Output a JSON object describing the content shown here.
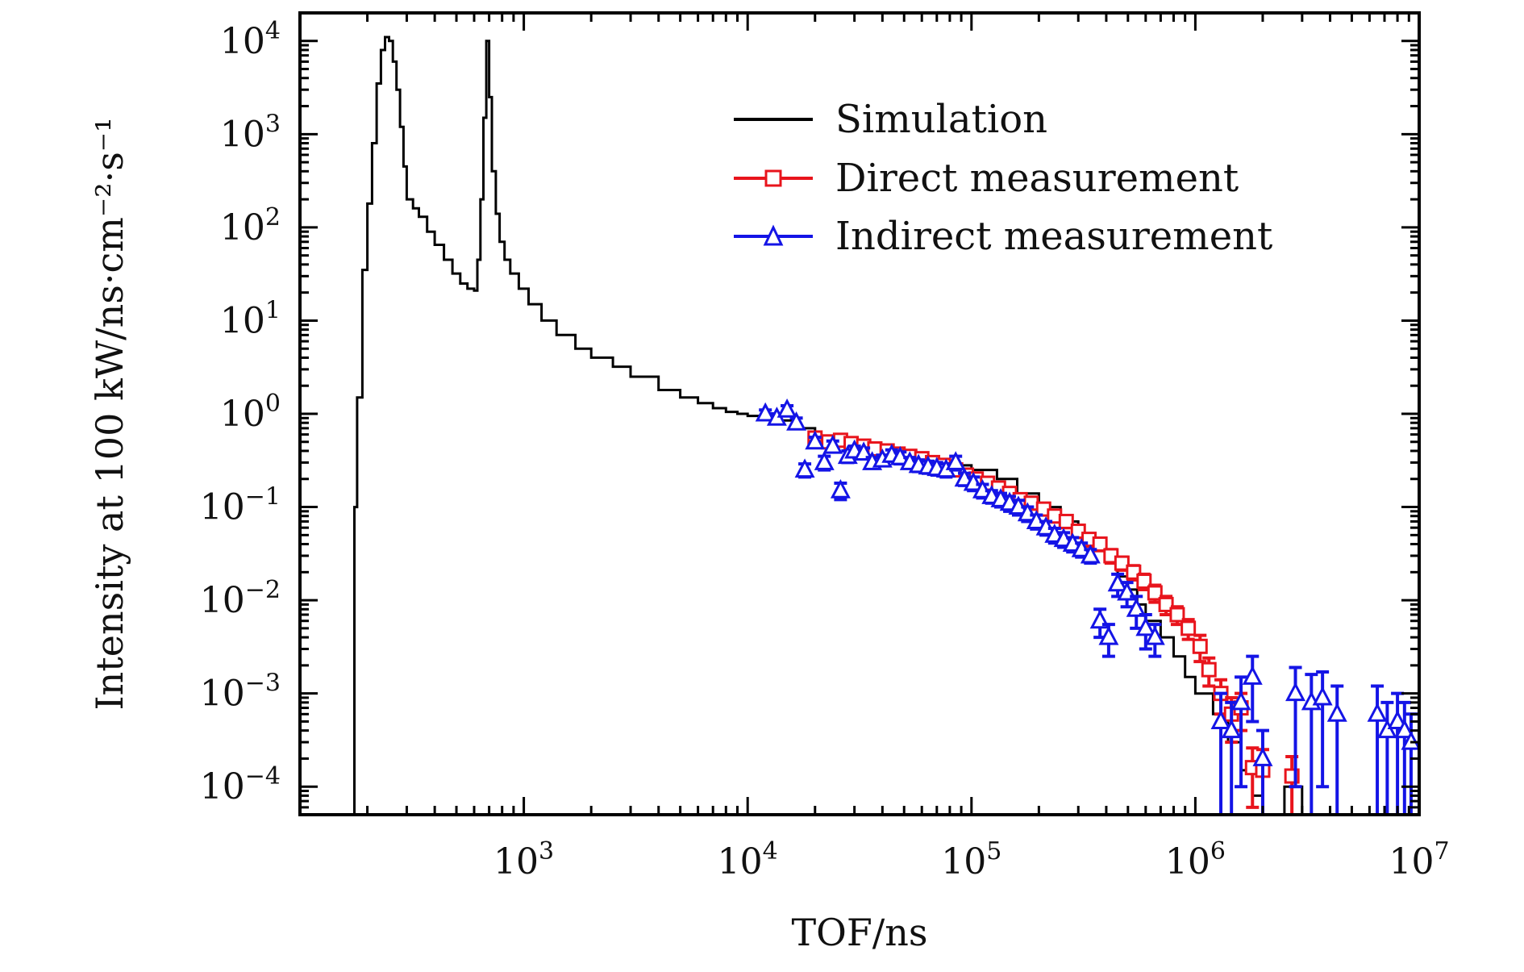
{
  "chart_data": {
    "type": "line",
    "title": "",
    "xlabel": "TOF/ns",
    "ylabel": "Intensity at 100 kW/ns·cm⁻²·s⁻¹",
    "xscale": "log",
    "yscale": "log",
    "xlim": [
      100,
      10000000
    ],
    "ylim": [
      5e-05,
      20000
    ],
    "grid": false,
    "legend_position": "top-right",
    "x_ticks": [
      {
        "value": 1000,
        "base": "10",
        "exp": "3"
      },
      {
        "value": 10000,
        "base": "10",
        "exp": "4"
      },
      {
        "value": 100000,
        "base": "10",
        "exp": "5"
      },
      {
        "value": 1000000,
        "base": "10",
        "exp": "6"
      },
      {
        "value": 10000000,
        "base": "10",
        "exp": "7"
      }
    ],
    "y_ticks": [
      {
        "value": 10000,
        "base": "10",
        "exp": "4"
      },
      {
        "value": 1000,
        "base": "10",
        "exp": "3"
      },
      {
        "value": 100,
        "base": "10",
        "exp": "2"
      },
      {
        "value": 10,
        "base": "10",
        "exp": "1"
      },
      {
        "value": 1,
        "base": "10",
        "exp": "0"
      },
      {
        "value": 0.1,
        "base": "10",
        "exp": "−1"
      },
      {
        "value": 0.01,
        "base": "10",
        "exp": "−2"
      },
      {
        "value": 0.001,
        "base": "10",
        "exp": "−3"
      },
      {
        "value": 0.0001,
        "base": "10",
        "exp": "−4"
      }
    ],
    "series": [
      {
        "name": "Simulation",
        "color": "#000000",
        "marker": "none",
        "style": "step",
        "x": [
          170,
          175,
          180,
          190,
          200,
          210,
          220,
          230,
          240,
          250,
          260,
          270,
          280,
          290,
          300,
          320,
          340,
          370,
          400,
          440,
          480,
          520,
          560,
          600,
          620,
          640,
          660,
          680,
          700,
          720,
          750,
          780,
          820,
          870,
          950,
          1050,
          1200,
          1400,
          1700,
          2000,
          2500,
          3000,
          4000,
          5000,
          6000,
          7000,
          8000,
          9000,
          10000,
          13000,
          16000,
          20000,
          25000,
          30000,
          40000,
          50000,
          60000,
          70000,
          80000,
          100000,
          130000,
          160000,
          200000,
          250000,
          300000,
          350000,
          400000,
          450000,
          500000,
          550000,
          600000,
          700000,
          800000,
          900000,
          1000000,
          1200000,
          1400000,
          1600000,
          1800000,
          2000000,
          2500000,
          3000000
        ],
        "y": [
          5e-05,
          0.1,
          1.5,
          35,
          180,
          800,
          3500,
          8000,
          11000,
          10000,
          6000,
          3000,
          1200,
          450,
          200,
          160,
          130,
          90,
          65,
          45,
          32,
          25,
          22,
          21,
          45,
          200,
          1500,
          10000,
          2500,
          400,
          140,
          70,
          45,
          32,
          22,
          15,
          10,
          7,
          5,
          4,
          3.2,
          2.5,
          1.8,
          1.5,
          1.3,
          1.15,
          1.05,
          1.0,
          0.95,
          0.85,
          0.7,
          0.55,
          0.45,
          0.42,
          0.38,
          0.35,
          0.32,
          0.3,
          0.28,
          0.25,
          0.2,
          0.14,
          0.1,
          0.07,
          0.05,
          0.035,
          0.025,
          0.018,
          0.013,
          0.009,
          0.006,
          0.004,
          0.0025,
          0.0015,
          0.001,
          0.0006,
          0.0003,
          0.00015,
          8e-05,
          5e-05,
          0.0001,
          5e-05
        ]
      },
      {
        "name": "Direct measurement",
        "color": "#e8141c",
        "marker": "square",
        "x": [
          20000,
          23000,
          26000,
          29000,
          33000,
          37000,
          42000,
          47000,
          53000,
          60000,
          67000,
          75000,
          85000,
          95000,
          105000,
          118000,
          132000,
          148000,
          165000,
          185000,
          210000,
          235000,
          265000,
          300000,
          335000,
          375000,
          420000,
          470000,
          530000,
          590000,
          660000,
          740000,
          830000,
          930000,
          1050000,
          1150000,
          1300000,
          1450000,
          1600000,
          1800000,
          2000000,
          2700000
        ],
        "y": [
          0.55,
          0.5,
          0.52,
          0.48,
          0.45,
          0.42,
          0.4,
          0.37,
          0.35,
          0.33,
          0.3,
          0.28,
          0.25,
          0.22,
          0.2,
          0.18,
          0.16,
          0.14,
          0.12,
          0.11,
          0.095,
          0.08,
          0.07,
          0.055,
          0.045,
          0.04,
          0.03,
          0.025,
          0.02,
          0.016,
          0.012,
          0.009,
          0.007,
          0.005,
          0.0032,
          0.0018,
          0.001,
          0.0006,
          0.0007,
          0.00016,
          0.00015,
          0.00013
        ],
        "err": [
          0.05,
          0.05,
          0.05,
          0.04,
          0.04,
          0.04,
          0.04,
          0.03,
          0.03,
          0.03,
          0.03,
          0.03,
          0.03,
          0.02,
          0.02,
          0.02,
          0.02,
          0.02,
          0.015,
          0.015,
          0.012,
          0.01,
          0.01,
          0.008,
          0.007,
          0.006,
          0.005,
          0.004,
          0.0035,
          0.003,
          0.0025,
          0.002,
          0.0015,
          0.0012,
          0.001,
          0.0006,
          0.0004,
          0.0003,
          0.0003,
          0.0001,
          0.0001,
          8e-05
        ]
      },
      {
        "name": "Indirect measurement",
        "color": "#1414e6",
        "marker": "triangle",
        "x": [
          12000,
          13500,
          15000,
          16500,
          18000,
          20000,
          22000,
          24000,
          26000,
          28000,
          30000,
          33000,
          36000,
          40000,
          44000,
          48000,
          53000,
          58000,
          64000,
          70000,
          77000,
          85000,
          93000,
          102000,
          112000,
          123000,
          135000,
          148000,
          162000,
          178000,
          195000,
          215000,
          235000,
          258000,
          283000,
          310000,
          340000,
          375000,
          410000,
          450000,
          495000,
          545000,
          600000,
          660000,
          1300000,
          1450000,
          1600000,
          1800000,
          2000000,
          2800000,
          3300000,
          3700000,
          4300000,
          6500000,
          7200000,
          8000000,
          8600000,
          9200000
        ],
        "y": [
          1.0,
          0.9,
          1.1,
          0.8,
          0.25,
          0.5,
          0.3,
          0.45,
          0.15,
          0.35,
          0.4,
          0.38,
          0.3,
          0.32,
          0.36,
          0.34,
          0.3,
          0.28,
          0.27,
          0.26,
          0.25,
          0.3,
          0.2,
          0.18,
          0.15,
          0.13,
          0.12,
          0.11,
          0.1,
          0.085,
          0.07,
          0.06,
          0.05,
          0.045,
          0.04,
          0.035,
          0.03,
          0.006,
          0.004,
          0.015,
          0.012,
          0.008,
          0.005,
          0.004,
          0.0005,
          0.0004,
          0.0008,
          0.0015,
          0.0002,
          0.001,
          0.0008,
          0.0009,
          0.0006,
          0.0006,
          0.0004,
          0.0005,
          0.0004,
          0.0003
        ],
        "err": [
          0.1,
          0.1,
          0.12,
          0.1,
          0.04,
          0.06,
          0.05,
          0.06,
          0.03,
          0.05,
          0.05,
          0.05,
          0.04,
          0.04,
          0.05,
          0.05,
          0.04,
          0.04,
          0.04,
          0.04,
          0.04,
          0.05,
          0.03,
          0.03,
          0.025,
          0.02,
          0.02,
          0.02,
          0.018,
          0.015,
          0.012,
          0.01,
          0.009,
          0.008,
          0.007,
          0.006,
          0.005,
          0.002,
          0.0015,
          0.004,
          0.0035,
          0.003,
          0.002,
          0.0015,
          0.0005,
          0.0004,
          0.0007,
          0.001,
          0.0002,
          0.0009,
          0.0008,
          0.0008,
          0.0006,
          0.0006,
          0.0004,
          0.0005,
          0.0004,
          0.0003
        ]
      }
    ]
  }
}
